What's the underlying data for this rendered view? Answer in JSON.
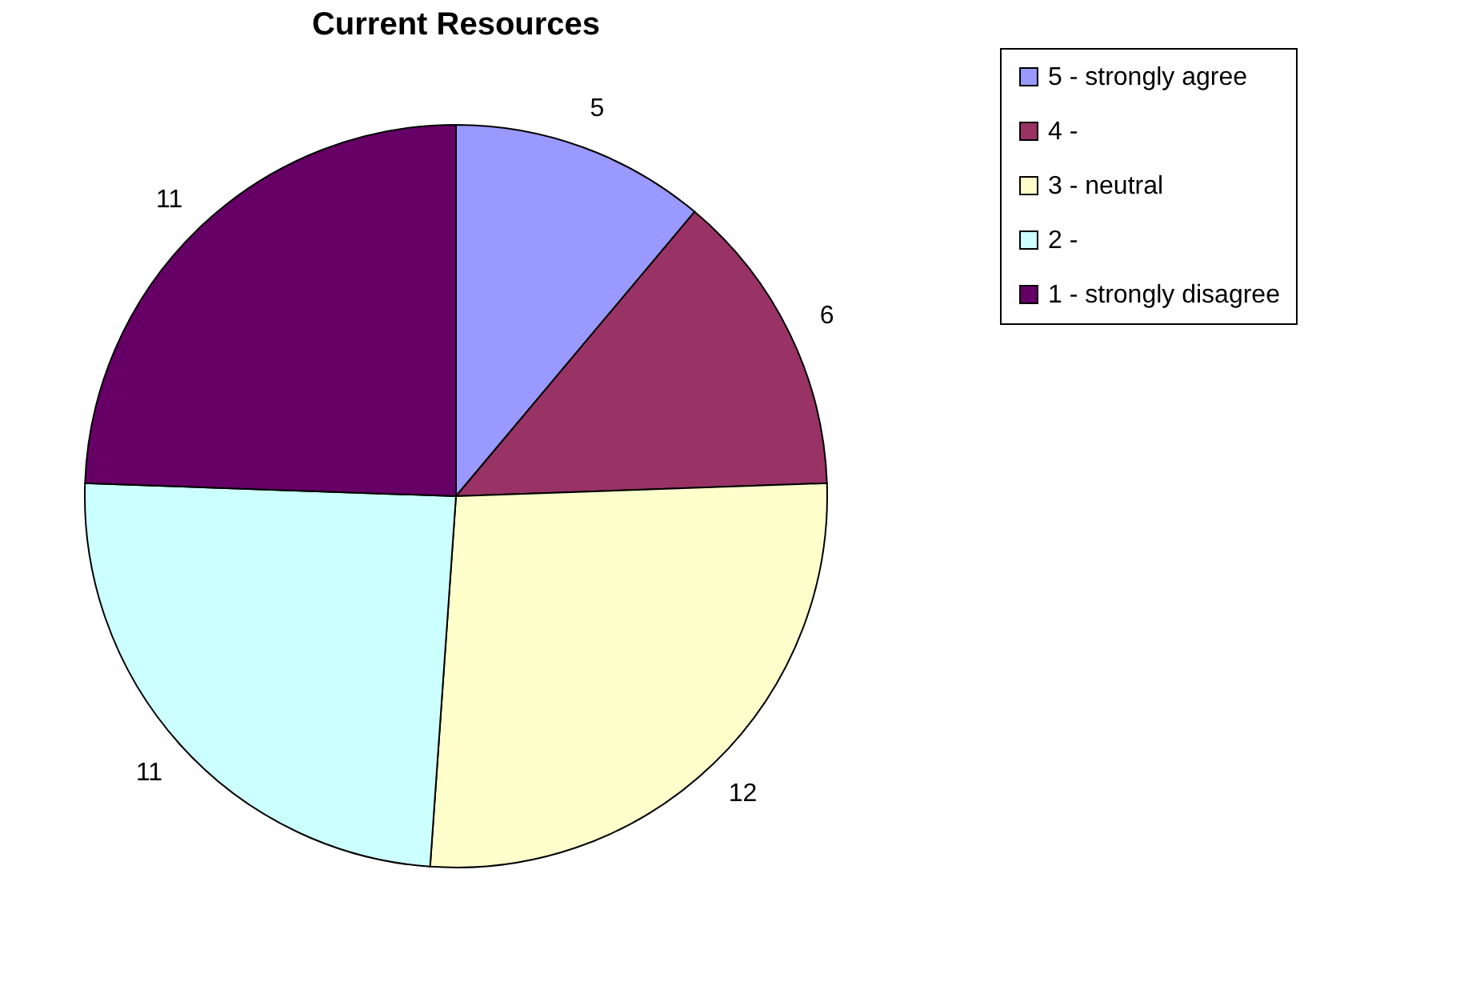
{
  "chart_data": {
    "type": "pie",
    "title": "Current Resources",
    "categories": [
      "5 - strongly agree",
      "4 -",
      "3 - neutral",
      "2 -",
      "1 - strongly disagree"
    ],
    "values": [
      5,
      6,
      12,
      11,
      11
    ],
    "colors": [
      "#9999ff",
      "#993366",
      "#ffffcc",
      "#ccffff",
      "#660066"
    ],
    "data_labels": true,
    "legend": "right"
  }
}
